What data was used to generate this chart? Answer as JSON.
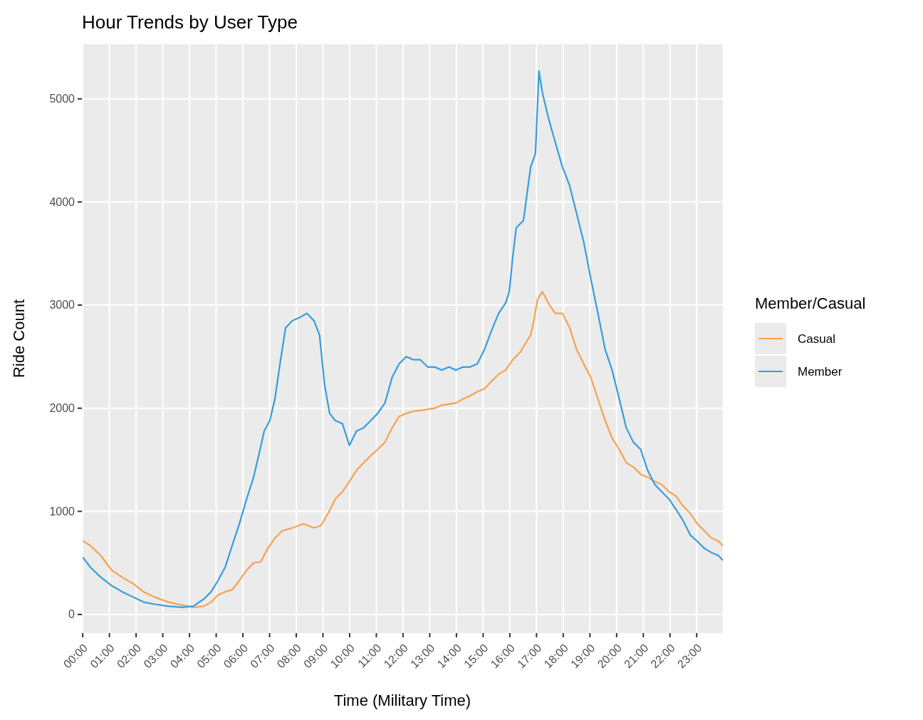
{
  "chart_data": {
    "type": "line",
    "title": "Hour Trends by User Type",
    "xlabel": "Time (Military Time)",
    "ylabel": "Ride Count",
    "legend_title": "Member/Casual",
    "legend": "right",
    "grid": true,
    "line_style": "solid",
    "marker": "none",
    "xlim": [
      -0.03,
      23.98
    ],
    "ylim": [
      -180,
      5530
    ],
    "xticks": [
      {
        "value": 0,
        "label": "00:00"
      },
      {
        "value": 1,
        "label": "01:00"
      },
      {
        "value": 2,
        "label": "02:00"
      },
      {
        "value": 3,
        "label": "03:00"
      },
      {
        "value": 4,
        "label": "04:00"
      },
      {
        "value": 5,
        "label": "05:00"
      },
      {
        "value": 6,
        "label": "06:00"
      },
      {
        "value": 7,
        "label": "07:00"
      },
      {
        "value": 8,
        "label": "08:00"
      },
      {
        "value": 9,
        "label": "09:00"
      },
      {
        "value": 10,
        "label": "10:00"
      },
      {
        "value": 11,
        "label": "11:00"
      },
      {
        "value": 12,
        "label": "12:00"
      },
      {
        "value": 13,
        "label": "13:00"
      },
      {
        "value": 14,
        "label": "14:00"
      },
      {
        "value": 15,
        "label": "15:00"
      },
      {
        "value": 16,
        "label": "16:00"
      },
      {
        "value": 17,
        "label": "17:00"
      },
      {
        "value": 18,
        "label": "18:00"
      },
      {
        "value": 19,
        "label": "19:00"
      },
      {
        "value": 20,
        "label": "20:00"
      },
      {
        "value": 21,
        "label": "21:00"
      },
      {
        "value": 22,
        "label": "22:00"
      },
      {
        "value": 23,
        "label": "23:00"
      }
    ],
    "yticks": [
      0,
      1000,
      2000,
      3000,
      4000,
      5000
    ],
    "x": [
      0.02,
      0.28,
      0.68,
      1.08,
      1.48,
      1.88,
      2.28,
      2.68,
      3.21,
      3.74,
      4.14,
      4.54,
      4.81,
      5.07,
      5.34,
      5.6,
      5.87,
      6.14,
      6.4,
      6.59,
      6.8,
      7.01,
      7.2,
      7.39,
      7.6,
      7.86,
      8.13,
      8.4,
      8.66,
      8.87,
      9.06,
      9.25,
      9.46,
      9.73,
      9.99,
      10.26,
      10.52,
      10.79,
      11.05,
      11.32,
      11.59,
      11.85,
      12.12,
      12.39,
      12.65,
      12.92,
      13.18,
      13.45,
      13.72,
      13.98,
      14.25,
      14.51,
      14.78,
      15.05,
      15.31,
      15.58,
      15.84,
      15.98,
      16.11,
      16.24,
      16.51,
      16.78,
      16.96,
      17.09,
      17.22,
      17.44,
      17.7,
      17.97,
      18.24,
      18.5,
      18.77,
      19.03,
      19.3,
      19.57,
      19.83,
      20.1,
      20.36,
      20.63,
      20.9,
      21.16,
      21.43,
      21.69,
      21.96,
      22.22,
      22.49,
      22.76,
      23.02,
      23.29,
      23.56,
      23.82,
      23.96
    ],
    "series": [
      {
        "name": "Casual",
        "color": "#f8a14c",
        "x": [
          0.02,
          0.28,
          0.68,
          1.08,
          1.48,
          1.88,
          2.28,
          2.68,
          3.21,
          3.74,
          4.14,
          4.54,
          4.81,
          5.07,
          5.34,
          5.6,
          5.87,
          6.14,
          6.4,
          6.67,
          6.93,
          7.2,
          7.47,
          7.86,
          8.26,
          8.66,
          8.92,
          9.19,
          9.46,
          9.73,
          9.99,
          10.26,
          10.52,
          10.79,
          11.05,
          11.32,
          11.59,
          11.85,
          12.12,
          12.39,
          12.65,
          12.92,
          13.18,
          13.45,
          13.72,
          13.98,
          14.25,
          14.51,
          14.78,
          15.05,
          15.31,
          15.58,
          15.84,
          16.11,
          16.38,
          16.78,
          16.9,
          17.04,
          17.22,
          17.44,
          17.7,
          17.97,
          18.24,
          18.5,
          18.77,
          19.03,
          19.3,
          19.57,
          19.83,
          20.1,
          20.36,
          20.63,
          20.9,
          21.16,
          21.43,
          21.69,
          21.96,
          22.22,
          22.49,
          22.76,
          23.02,
          23.29,
          23.56,
          23.82,
          23.96
        ],
        "values": [
          710,
          670,
          570,
          430,
          360,
          300,
          220,
          170,
          120,
          90,
          70,
          80,
          120,
          190,
          220,
          240,
          330,
          430,
          500,
          510,
          640,
          740,
          810,
          840,
          880,
          840,
          860,
          980,
          1120,
          1190,
          1290,
          1400,
          1470,
          1540,
          1600,
          1670,
          1810,
          1920,
          1950,
          1970,
          1980,
          1990,
          2000,
          2030,
          2040,
          2050,
          2090,
          2120,
          2160,
          2190,
          2260,
          2330,
          2370,
          2470,
          2540,
          2710,
          2850,
          3060,
          3130,
          3020,
          2920,
          2920,
          2780,
          2570,
          2430,
          2300,
          2090,
          1880,
          1710,
          1600,
          1470,
          1430,
          1360,
          1330,
          1290,
          1260,
          1190,
          1150,
          1050,
          980,
          880,
          810,
          740,
          710,
          670
        ]
      },
      {
        "name": "Member",
        "color": "#379dda",
        "values": [
          550,
          460,
          360,
          280,
          220,
          170,
          120,
          100,
          80,
          70,
          80,
          150,
          220,
          330,
          460,
          670,
          880,
          1120,
          1330,
          1540,
          1780,
          1880,
          2090,
          2430,
          2780,
          2850,
          2880,
          2920,
          2850,
          2710,
          2230,
          1950,
          1880,
          1850,
          1640,
          1780,
          1810,
          1880,
          1950,
          2050,
          2300,
          2430,
          2500,
          2470,
          2470,
          2400,
          2400,
          2370,
          2400,
          2370,
          2400,
          2400,
          2430,
          2570,
          2750,
          2920,
          3020,
          3130,
          3470,
          3750,
          3820,
          4340,
          4470,
          5270,
          5060,
          4820,
          4580,
          4340,
          4160,
          3890,
          3610,
          3260,
          2920,
          2570,
          2370,
          2090,
          1810,
          1670,
          1600,
          1400,
          1260,
          1190,
          1120,
          1020,
          910,
          770,
          710,
          640,
          600,
          570,
          530
        ]
      }
    ]
  }
}
